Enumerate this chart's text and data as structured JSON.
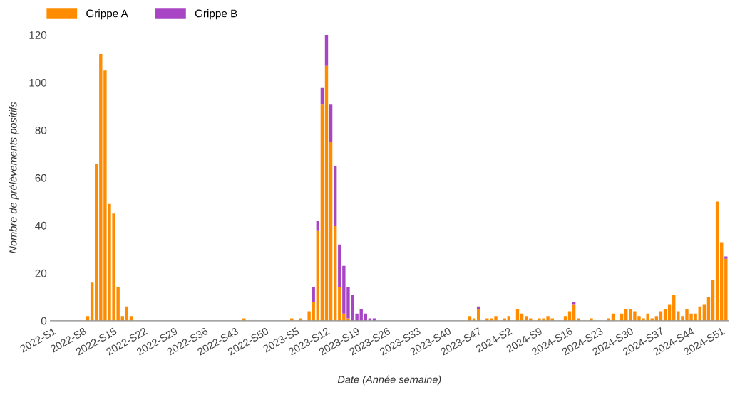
{
  "chart_data": {
    "type": "bar",
    "stacked": true,
    "xlabel": "Date (Année semaine)",
    "ylabel": "Nombre de prélèvements positifs",
    "categories": [
      "2022-S1",
      null,
      null,
      null,
      null,
      null,
      null,
      "2022-S8",
      null,
      null,
      null,
      null,
      null,
      null,
      "2022-S15",
      null,
      null,
      null,
      null,
      null,
      null,
      "2022-S22",
      null,
      null,
      null,
      null,
      null,
      null,
      "2022-S29",
      null,
      null,
      null,
      null,
      null,
      null,
      "2022-S36",
      null,
      null,
      null,
      null,
      null,
      null,
      "2022-S43",
      null,
      null,
      null,
      null,
      null,
      null,
      "2022-S50",
      null,
      null,
      null,
      null,
      null,
      null,
      "2023-S5",
      null,
      null,
      null,
      null,
      null,
      null,
      "2023-S12",
      null,
      null,
      null,
      null,
      null,
      null,
      "2023-S19",
      null,
      null,
      null,
      null,
      null,
      null,
      "2023-S26",
      null,
      null,
      null,
      null,
      null,
      null,
      "2023-S33",
      null,
      null,
      null,
      null,
      null,
      null,
      "2023-S40",
      null,
      null,
      null,
      null,
      null,
      null,
      "2023-S47",
      null,
      null,
      null,
      null,
      null,
      null,
      "2024-S2",
      null,
      null,
      null,
      null,
      null,
      null,
      "2024-S9",
      null,
      null,
      null,
      null,
      null,
      null,
      "2024-S16",
      null,
      null,
      null,
      null,
      null,
      null,
      "2024-S23",
      null,
      null,
      null,
      null,
      null,
      null,
      "2024-S30",
      null,
      null,
      null,
      null,
      null,
      null,
      "2024-S37",
      null,
      null,
      null,
      null,
      null,
      null,
      "2024-S44",
      null,
      null,
      null,
      null,
      null,
      null,
      "2024-S51",
      null
    ],
    "series": [
      {
        "name": "Grippe A",
        "color": "#ff8c00",
        "values": [
          0,
          0,
          0,
          0,
          0,
          0,
          0,
          0,
          2,
          16,
          66,
          112,
          105,
          49,
          45,
          14,
          2,
          6,
          2,
          0,
          0,
          0,
          0,
          0,
          0,
          0,
          0,
          0,
          0,
          0,
          0,
          0,
          0,
          0,
          0,
          0,
          0,
          0,
          0,
          0,
          0,
          0,
          0,
          0,
          1,
          0,
          0,
          0,
          0,
          0,
          0,
          0,
          0,
          0,
          0,
          1,
          0,
          1,
          0,
          4,
          8,
          38,
          91,
          107,
          75,
          40,
          14,
          3,
          1,
          0,
          0,
          0,
          0,
          0,
          0,
          0,
          0,
          0,
          0,
          0,
          0,
          0,
          0,
          0,
          0,
          0,
          0,
          0,
          0,
          0,
          0,
          0,
          0,
          0,
          0,
          0,
          2,
          1,
          5,
          0,
          1,
          1,
          2,
          0,
          1,
          2,
          0,
          5,
          3,
          2,
          1,
          0,
          1,
          1,
          2,
          1,
          0,
          0,
          2,
          4,
          7,
          1,
          0,
          0,
          1,
          0,
          0,
          0,
          1,
          3,
          0,
          3,
          5,
          5,
          4,
          2,
          1,
          3,
          1,
          2,
          4,
          5,
          7,
          11,
          4,
          2,
          5,
          3,
          3,
          6,
          7,
          10,
          17,
          50,
          33,
          26
        ]
      },
      {
        "name": "Grippe B",
        "color": "#a845c4",
        "values": [
          0,
          0,
          0,
          0,
          0,
          0,
          0,
          0,
          0,
          0,
          0,
          0,
          0,
          0,
          0,
          0,
          0,
          0,
          0,
          0,
          0,
          0,
          0,
          0,
          0,
          0,
          0,
          0,
          0,
          0,
          0,
          0,
          0,
          0,
          0,
          0,
          0,
          0,
          0,
          0,
          0,
          0,
          0,
          0,
          0,
          0,
          0,
          0,
          0,
          0,
          0,
          0,
          0,
          0,
          0,
          0,
          0,
          0,
          0,
          0,
          6,
          4,
          7,
          13,
          16,
          25,
          18,
          20,
          13,
          11,
          3,
          5,
          3,
          1,
          1,
          0,
          0,
          0,
          0,
          0,
          0,
          0,
          0,
          0,
          0,
          0,
          0,
          0,
          0,
          0,
          0,
          0,
          0,
          0,
          0,
          0,
          0,
          0,
          1,
          0,
          0,
          0,
          0,
          0,
          0,
          0,
          0,
          0,
          0,
          0,
          0,
          0,
          0,
          0,
          0,
          0,
          0,
          0,
          0,
          0,
          1,
          0,
          0,
          0,
          0,
          0,
          0,
          0,
          0,
          0,
          0,
          0,
          0,
          0,
          0,
          0,
          0,
          0,
          0,
          0,
          0,
          0,
          0,
          0,
          0,
          0,
          0,
          0,
          0,
          0,
          0,
          0,
          0,
          0,
          0,
          1
        ]
      }
    ],
    "ylim": [
      0,
      120
    ],
    "yticks": [
      0,
      20,
      40,
      60,
      80,
      100,
      120
    ],
    "grid": false,
    "legend": "top left"
  }
}
